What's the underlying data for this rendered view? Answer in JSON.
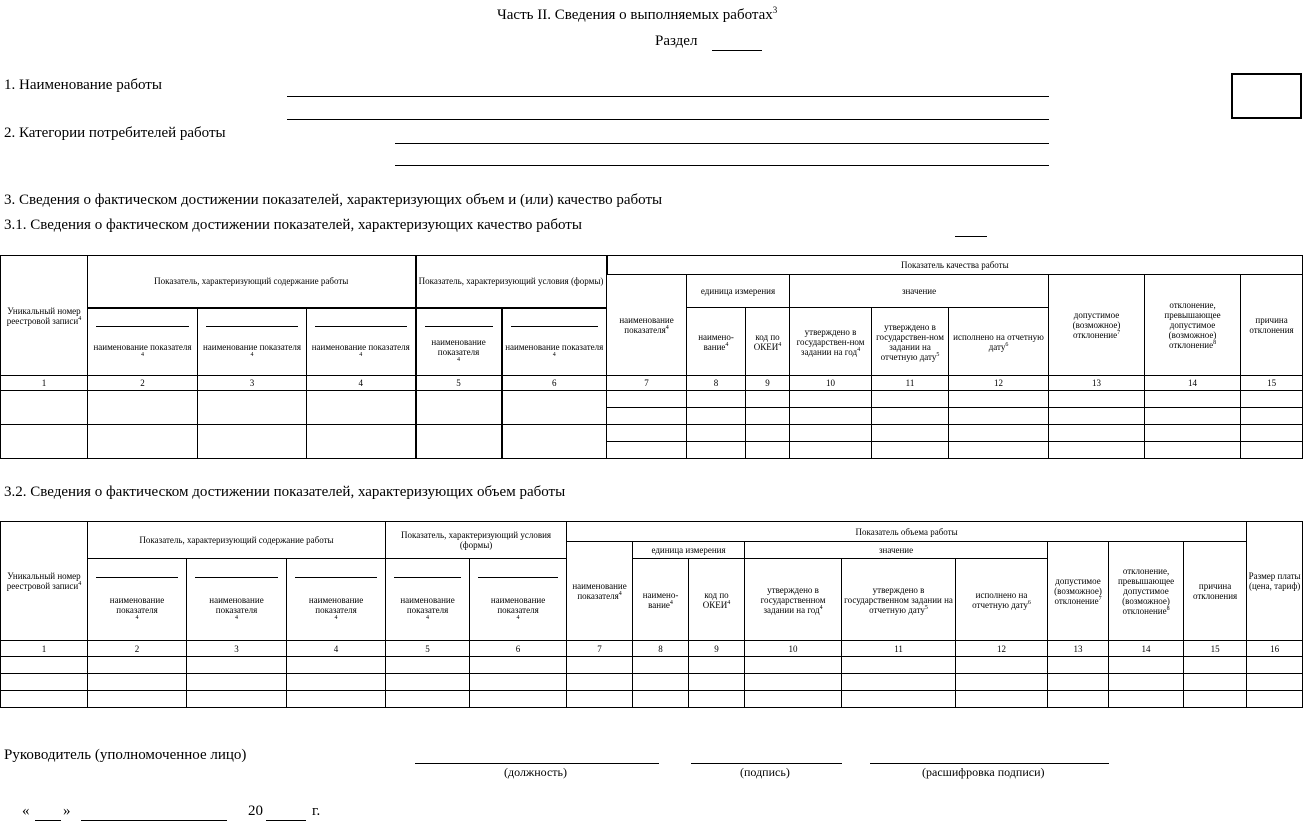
{
  "title": {
    "text": "Часть II. Сведения о выполняемых работах",
    "footnote": "3"
  },
  "section": {
    "label": "Раздел"
  },
  "fields": {
    "work_name": "1. Наименование работы",
    "consumers": "2. Категории потребителей работы"
  },
  "headings": {
    "h3": "3. Сведения о фактическом достижении показателей, характеризующих объем и (или) качество работы",
    "h31": "3.1. Сведения о фактическом достижении показателей, характеризующих качество работы",
    "h32": "3.2. Сведения о фактическом достижении показателей, характеризующих объем работы"
  },
  "table1": {
    "unique": "Уникальный номер реестровой записи",
    "content": "Показатель, характеризующий содержание работы",
    "conditions": "Показатель, характеризующий условия (формы)",
    "quality": "Показатель качества работы",
    "ind_name": "наименование показателя",
    "ind_name7": "наименование показателя",
    "unit": "единица измерения",
    "value": "значение",
    "unit_name": "наимено-вание",
    "okei": "код по ОКЕИ",
    "approved_year": "утверждено в государствен-ном задании на год",
    "approved_date": "утверждено в государствен-ном задании на отчетную дату",
    "done": "исполнено на отчетную дату",
    "allowed": "допустимое (возможное) отклонение",
    "exceed": "отклонение, превышающее допустимое (возможное) отклонение",
    "reason": "причина отклонения",
    "nums": [
      "1",
      "2",
      "3",
      "4",
      "5",
      "6",
      "7",
      "8",
      "9",
      "10",
      "11",
      "12",
      "13",
      "14",
      "15"
    ]
  },
  "table2": {
    "unique": "Уникальный номер реестровой записи",
    "content": "Показатель, характеризующий содержание работы",
    "conditions": "Показатель, характеризующий условия (формы)",
    "volume": "Показатель объема работы",
    "ind_name": "наименование показателя",
    "ind_name7": "наименование показателя",
    "unit": "единица измерения",
    "value": "значение",
    "unit_name": "наимено-вание",
    "okei": "код по ОКЕИ",
    "approved_year": "утверждено в государственном задании на год",
    "approved_date": "утверждено в государственном задании на отчетную дату",
    "done": "исполнено на отчетную дату",
    "allowed": "допустимое (возможное) отклонение",
    "exceed": "отклонение, превышающее допустимое (возможное) отклонение",
    "reason": "причина отклонения",
    "fee": "Размер платы (цена, тариф)",
    "nums": [
      "1",
      "2",
      "3",
      "4",
      "5",
      "6",
      "7",
      "8",
      "9",
      "10",
      "11",
      "12",
      "13",
      "14",
      "15",
      "16"
    ]
  },
  "signature": {
    "head": "Руководитель (уполномоченное лицо)",
    "position": "(должность)",
    "sign": "(подпись)",
    "decode": "(расшифровка подписи)",
    "quote_open": "«",
    "quote_close": "»",
    "year_prefix": "20",
    "year_suffix": "г."
  }
}
